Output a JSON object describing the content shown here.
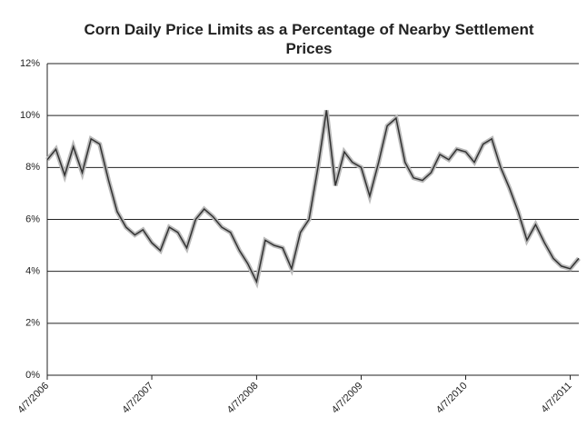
{
  "chart_data": {
    "type": "line",
    "title": "Corn Daily Price Limits as a Percentage of Nearby Settlement Prices",
    "x": [
      "4/7/2006",
      "5/7/2006",
      "6/7/2006",
      "7/7/2006",
      "8/7/2006",
      "9/7/2006",
      "10/7/2006",
      "11/7/2006",
      "12/7/2006",
      "1/7/2007",
      "2/7/2007",
      "3/7/2007",
      "4/7/2007",
      "5/7/2007",
      "6/7/2007",
      "7/7/2007",
      "8/7/2007",
      "9/7/2007",
      "10/7/2007",
      "11/7/2007",
      "12/7/2007",
      "1/7/2008",
      "2/7/2008",
      "3/7/2008",
      "4/7/2008",
      "5/7/2008",
      "6/7/2008",
      "7/7/2008",
      "8/7/2008",
      "9/7/2008",
      "10/7/2008",
      "11/7/2008",
      "12/7/2008",
      "1/7/2009",
      "2/7/2009",
      "3/7/2009",
      "4/7/2009",
      "5/7/2009",
      "6/7/2009",
      "7/7/2009",
      "8/7/2009",
      "9/7/2009",
      "10/7/2009",
      "11/7/2009",
      "12/7/2009",
      "1/7/2010",
      "2/7/2010",
      "3/7/2010",
      "4/7/2010",
      "5/7/2010",
      "6/7/2010",
      "7/7/2010",
      "8/7/2010",
      "9/7/2010",
      "10/7/2010",
      "11/7/2010",
      "12/7/2010",
      "1/7/2011",
      "2/7/2011",
      "3/7/2011",
      "4/7/2011",
      "5/7/2011"
    ],
    "series": [
      {
        "color": "#333333",
        "values": [
          8.3,
          8.7,
          7.7,
          8.8,
          7.8,
          9.1,
          8.9,
          7.5,
          6.3,
          5.7,
          5.4,
          5.6,
          5.1,
          4.8,
          5.7,
          5.5,
          4.9,
          6.0,
          6.4,
          6.1,
          5.7,
          5.5,
          4.8,
          4.3,
          3.6,
          5.2,
          5.0,
          4.9,
          4.1,
          5.5,
          6.0,
          8.0,
          10.2,
          7.3,
          8.6,
          8.2,
          8.0,
          6.9,
          8.2,
          9.6,
          9.9,
          8.2,
          7.6,
          7.5,
          7.8,
          8.5,
          8.3,
          8.7,
          8.6,
          8.2,
          8.9,
          9.1,
          8.0,
          7.2,
          6.3,
          5.2,
          5.8,
          5.1,
          4.5,
          4.2,
          4.1,
          4.5
        ]
      }
    ],
    "xlim": [
      "4/7/2006",
      "5/7/2011"
    ],
    "xticks": [
      "4/7/2006",
      "4/7/2007",
      "4/7/2008",
      "4/7/2009",
      "4/7/2010",
      "4/7/2011"
    ],
    "ylim": [
      0,
      12
    ],
    "yticks": [
      {
        "value": 0,
        "label": "0%"
      },
      {
        "value": 2,
        "label": "2%"
      },
      {
        "value": 4,
        "label": "4%"
      },
      {
        "value": 6,
        "label": "6%"
      },
      {
        "value": 8,
        "label": "8%"
      },
      {
        "value": 10,
        "label": "10%"
      },
      {
        "value": 12,
        "label": "12%"
      }
    ],
    "grid": true
  }
}
